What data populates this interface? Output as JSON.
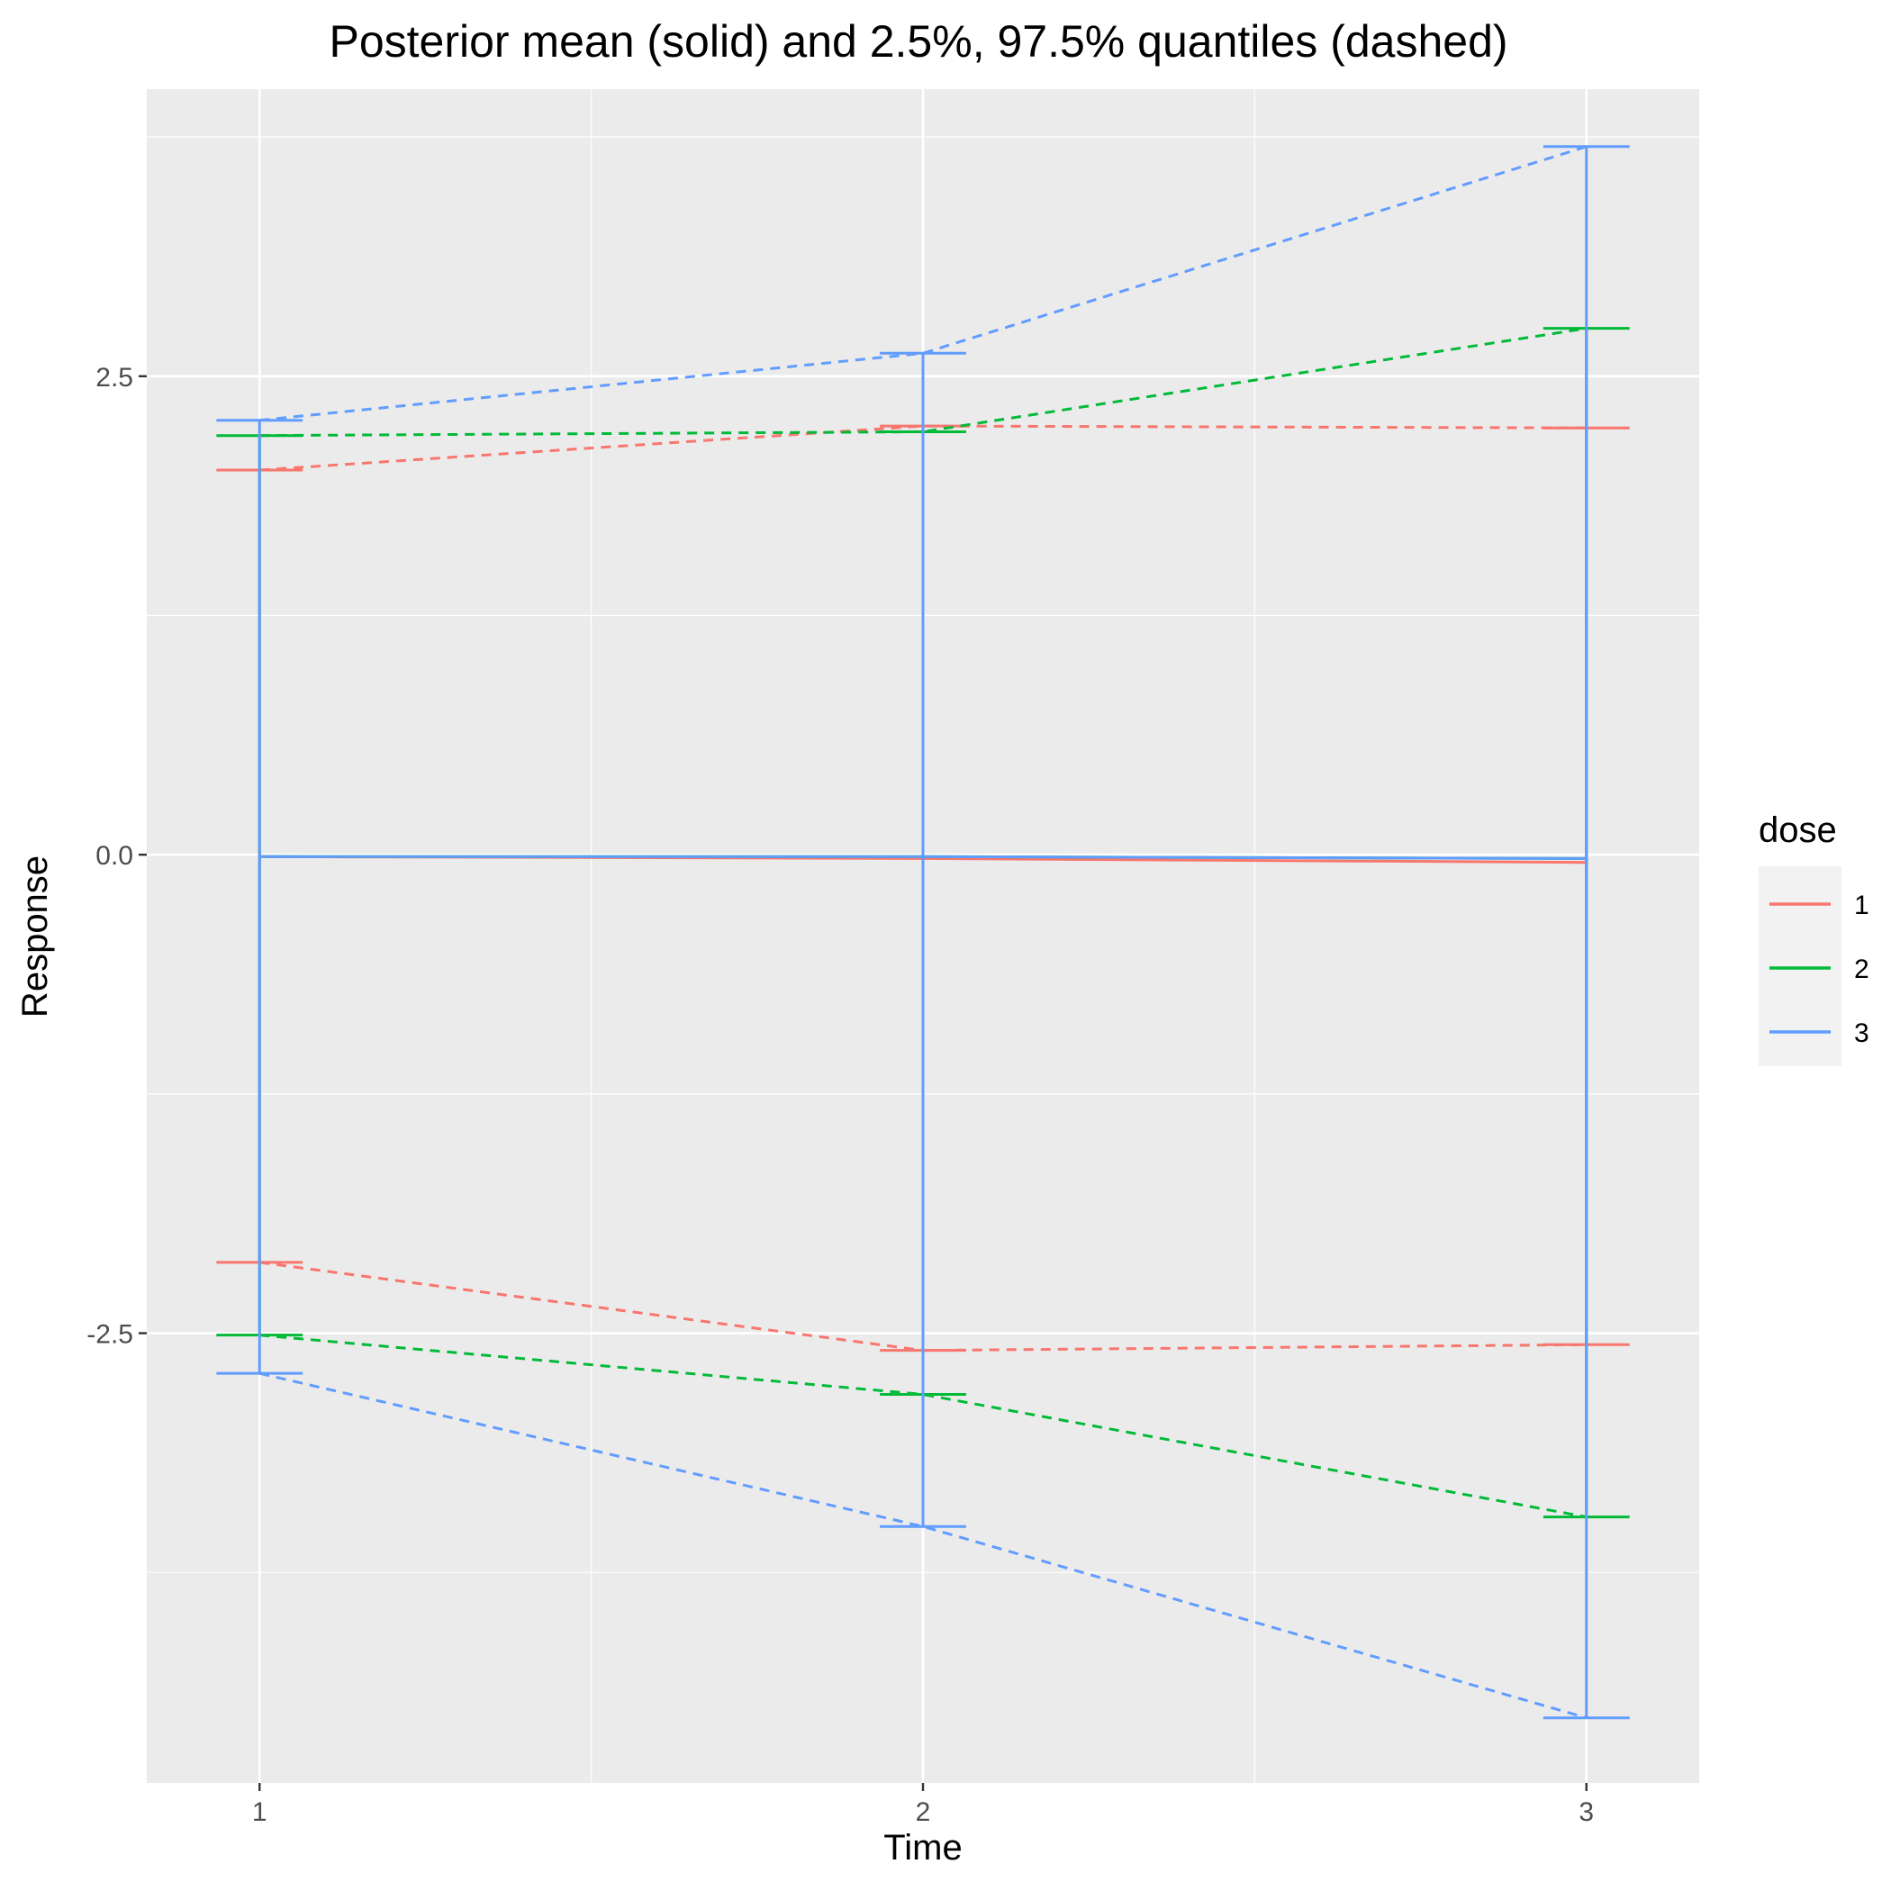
{
  "chart_data": {
    "type": "line",
    "title": "Posterior mean (solid) and 2.5%, 97.5% quantiles (dashed)",
    "xlabel": "Time",
    "ylabel": "Response",
    "x": [
      1,
      2,
      3
    ],
    "x_ticks": [
      "1",
      "2",
      "3"
    ],
    "y_ticks": [
      -2.5,
      0.0,
      2.5
    ],
    "y_tick_labels": [
      "-2.5",
      "0.0",
      "2.5"
    ],
    "xlim": [
      0.83,
      3.17
    ],
    "ylim": [
      -4.85,
      4.0
    ],
    "grid": true,
    "legend": {
      "title": "dose",
      "position": "right"
    },
    "series": [
      {
        "name": "1",
        "color": "#F8766D",
        "mean": [
          -0.01,
          -0.02,
          -0.04
        ],
        "lower": [
          -2.13,
          -2.59,
          -2.56
        ],
        "upper": [
          2.01,
          2.24,
          2.23
        ]
      },
      {
        "name": "2",
        "color": "#00BA38",
        "mean": [
          -0.01,
          -0.01,
          -0.02
        ],
        "lower": [
          -2.51,
          -2.82,
          -3.46
        ],
        "upper": [
          2.19,
          2.21,
          2.75
        ]
      },
      {
        "name": "3",
        "color": "#619CFF",
        "mean": [
          -0.01,
          -0.01,
          -0.02
        ],
        "lower": [
          -2.71,
          -3.51,
          -4.51
        ],
        "upper": [
          2.27,
          2.62,
          3.7
        ]
      }
    ]
  }
}
